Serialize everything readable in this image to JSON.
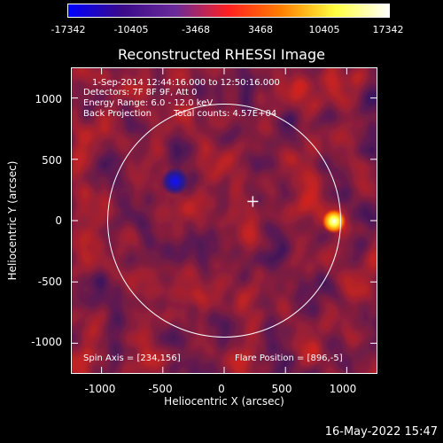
{
  "colorbar": {
    "ticks": [
      "-17342",
      "-10405",
      "-3468",
      "3468",
      "10405",
      "17342"
    ],
    "colors": [
      "#0000ff",
      "#3a0a8a",
      "#6a2a9a",
      "#ff2020",
      "#ff8000",
      "#ffff40",
      "#ffffff"
    ]
  },
  "title": "Reconstructed RHESSI Image",
  "overlay": {
    "time_range": "1-Sep-2014 12:44:16.000 to 12:50:16.000",
    "detectors": "Detectors: 7F 8F 9F, Att 0",
    "energy": "Energy Range: 6.0 - 12.0 keV",
    "method": "Back Projection",
    "counts": "Total counts: 4.57E+04",
    "spin_axis": "Spin Axis = [234,156]",
    "flare_position": "Flare Position = [896,-5]"
  },
  "axes": {
    "xlabel": "Heliocentric X (arcsec)",
    "ylabel": "Heliocentric Y (arcsec)",
    "xticks": [
      "-1000",
      "-500",
      "0",
      "500",
      "1000"
    ],
    "yticks": [
      "1000",
      "500",
      "0",
      "-500",
      "-1000"
    ]
  },
  "plot": {
    "xlim": [
      -1250,
      1250
    ],
    "ylim": [
      -1250,
      1250
    ],
    "solar_radius": 950,
    "spin_axis_marker": [
      234,
      156
    ],
    "flare_source": [
      896,
      -5
    ],
    "dark_source": [
      -400,
      320
    ]
  },
  "footer_date": "16-May-2022 15:47"
}
